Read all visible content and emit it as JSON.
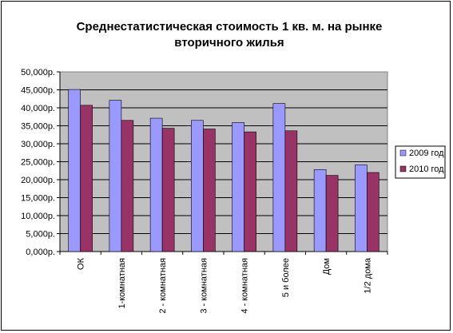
{
  "chart_data": {
    "type": "bar",
    "title": "Среднестатистическая стоимость 1 кв. м. на рынке вторичного жилья",
    "title_lines": [
      "Среднестатистическая стоимость 1 кв. м. на рынке",
      "вторичного жилья"
    ],
    "categories": [
      "ОК",
      "1-комнатная",
      "2 - комнатная",
      "3 - комнатная",
      "4 - комнатная",
      "5 и более",
      "Дом",
      "1/2 дома"
    ],
    "series": [
      {
        "name": "2009 год",
        "color": "#9999ff",
        "values": [
          45100,
          42100,
          37100,
          36500,
          35900,
          41200,
          22800,
          24100
        ]
      },
      {
        "name": "2010 год",
        "color": "#993366",
        "values": [
          40700,
          36500,
          34300,
          34100,
          33300,
          33600,
          21200,
          22000
        ]
      }
    ],
    "y_ticks": [
      "0,000р.",
      "5,000р.",
      "10,000р.",
      "15,000р.",
      "20,000р.",
      "25,000р.",
      "30,000р.",
      "35,000р.",
      "40,000р.",
      "45,000р.",
      "50,000р."
    ],
    "ylim": [
      0,
      50000
    ],
    "ytick_step": 5000,
    "grid": true,
    "legend_position": "right",
    "plot_background": "#c0c0c0"
  }
}
